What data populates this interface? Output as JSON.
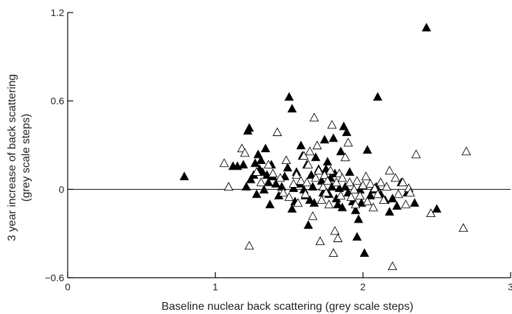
{
  "chart_data": {
    "type": "scatter",
    "title": "",
    "xlabel": "Baseline nuclear back scattering (grey scale steps)",
    "ylabel_line1": "3 year increase of back scattering",
    "ylabel_line2": "(grey scale steps)",
    "xlim": [
      0,
      3
    ],
    "ylim": [
      -0.6,
      1.2
    ],
    "xticks": [
      {
        "value": 0,
        "label": "0"
      },
      {
        "value": 1,
        "label": "1"
      },
      {
        "value": 2,
        "label": "2"
      },
      {
        "value": 3,
        "label": "3"
      }
    ],
    "yticks": [
      {
        "value": -0.6,
        "label": "−0.6"
      },
      {
        "value": 0,
        "label": "0"
      },
      {
        "value": 0.6,
        "label": "0.6"
      },
      {
        "value": 1.2,
        "label": "1.2"
      }
    ],
    "reference_line_y": 0,
    "grid": false,
    "legend": "none",
    "colors": {
      "filled": "#000000",
      "open_stroke": "#000000",
      "axis": "#000000"
    },
    "series": [
      {
        "marker": "filled-triangle",
        "points": [
          [
            0.79,
            0.09
          ],
          [
            1.12,
            0.16
          ],
          [
            1.15,
            0.16
          ],
          [
            1.19,
            0.17
          ],
          [
            1.21,
            0.02
          ],
          [
            1.22,
            0.4
          ],
          [
            1.23,
            0.42
          ],
          [
            1.24,
            0.07
          ],
          [
            1.26,
            0.1
          ],
          [
            1.27,
            0.18
          ],
          [
            1.28,
            -0.03
          ],
          [
            1.29,
            0.24
          ],
          [
            1.3,
            0.14
          ],
          [
            1.31,
            0.2
          ],
          [
            1.32,
            0.12
          ],
          [
            1.33,
            0.0
          ],
          [
            1.34,
            0.28
          ],
          [
            1.35,
            0.1
          ],
          [
            1.36,
            0.05
          ],
          [
            1.37,
            -0.1
          ],
          [
            1.38,
            0.17
          ],
          [
            1.39,
            0.09
          ],
          [
            1.41,
            0.04
          ],
          [
            1.43,
            -0.04
          ],
          [
            1.45,
            0.02
          ],
          [
            1.47,
            0.09
          ],
          [
            1.49,
            0.15
          ],
          [
            1.5,
            0.63
          ],
          [
            1.52,
            0.55
          ],
          [
            1.52,
            -0.13
          ],
          [
            1.53,
            0.01
          ],
          [
            1.54,
            -0.08
          ],
          [
            1.55,
            0.12
          ],
          [
            1.57,
            0.04
          ],
          [
            1.58,
            0.3
          ],
          [
            1.59,
            0.23
          ],
          [
            1.6,
            0.0
          ],
          [
            1.61,
            -0.04
          ],
          [
            1.62,
            0.17
          ],
          [
            1.63,
            -0.24
          ],
          [
            1.64,
            -0.07
          ],
          [
            1.65,
            0.1
          ],
          [
            1.66,
            0.02
          ],
          [
            1.67,
            -0.09
          ],
          [
            1.68,
            0.22
          ],
          [
            1.7,
            0.14
          ],
          [
            1.72,
            0.06
          ],
          [
            1.73,
            -0.02
          ],
          [
            1.74,
            0.34
          ],
          [
            1.75,
            0.14
          ],
          [
            1.76,
            0.19
          ],
          [
            1.77,
            -0.03
          ],
          [
            1.78,
            0.08
          ],
          [
            1.79,
            0.02
          ],
          [
            1.8,
            0.35
          ],
          [
            1.81,
            0.11
          ],
          [
            1.82,
            -0.06
          ],
          [
            1.83,
            -0.1
          ],
          [
            1.84,
            0.01
          ],
          [
            1.85,
            0.26
          ],
          [
            1.86,
            -0.12
          ],
          [
            1.87,
            0.43
          ],
          [
            1.88,
            0.02
          ],
          [
            1.89,
            0.39
          ],
          [
            1.9,
            -0.02
          ],
          [
            1.91,
            0.12
          ],
          [
            1.93,
            -0.08
          ],
          [
            1.95,
            -0.14
          ],
          [
            1.96,
            -0.32
          ],
          [
            1.97,
            -0.2
          ],
          [
            1.98,
            0.0
          ],
          [
            1.99,
            -0.09
          ],
          [
            2.01,
            -0.43
          ],
          [
            2.03,
            0.27
          ],
          [
            2.05,
            -0.04
          ],
          [
            2.07,
            0.0
          ],
          [
            2.09,
            0.02
          ],
          [
            2.1,
            0.63
          ],
          [
            2.12,
            -0.03
          ],
          [
            2.15,
            -0.07
          ],
          [
            2.18,
            -0.15
          ],
          [
            2.2,
            -0.06
          ],
          [
            2.23,
            -0.11
          ],
          [
            2.26,
            0.05
          ],
          [
            2.3,
            -0.02
          ],
          [
            2.35,
            -0.09
          ],
          [
            2.43,
            1.1
          ],
          [
            2.5,
            -0.13
          ]
        ]
      },
      {
        "marker": "open-triangle",
        "points": [
          [
            1.06,
            0.18
          ],
          [
            1.09,
            0.02
          ],
          [
            1.18,
            0.28
          ],
          [
            1.2,
            0.25
          ],
          [
            1.23,
            -0.38
          ],
          [
            1.28,
            0.12
          ],
          [
            1.31,
            0.05
          ],
          [
            1.36,
            0.17
          ],
          [
            1.39,
            0.11
          ],
          [
            1.42,
            0.39
          ],
          [
            1.44,
            0.08
          ],
          [
            1.46,
            -0.02
          ],
          [
            1.48,
            0.2
          ],
          [
            1.5,
            -0.05
          ],
          [
            1.53,
            0.04
          ],
          [
            1.55,
            0.1
          ],
          [
            1.56,
            -0.09
          ],
          [
            1.58,
            0.06
          ],
          [
            1.6,
            0.23
          ],
          [
            1.61,
            -0.03
          ],
          [
            1.62,
            0.05
          ],
          [
            1.63,
            0.17
          ],
          [
            1.64,
            0.26
          ],
          [
            1.66,
            -0.18
          ],
          [
            1.67,
            0.49
          ],
          [
            1.68,
            0.08
          ],
          [
            1.69,
            0.3
          ],
          [
            1.7,
            0.13
          ],
          [
            1.71,
            -0.35
          ],
          [
            1.72,
            -0.07
          ],
          [
            1.73,
            0.02
          ],
          [
            1.74,
            0.1
          ],
          [
            1.75,
            -0.02
          ],
          [
            1.76,
            0.06
          ],
          [
            1.77,
            -0.1
          ],
          [
            1.78,
            0.13
          ],
          [
            1.79,
            0.44
          ],
          [
            1.8,
            -0.43
          ],
          [
            1.81,
            -0.28
          ],
          [
            1.82,
            0.05
          ],
          [
            1.83,
            -0.33
          ],
          [
            1.84,
            0.11
          ],
          [
            1.85,
            -0.04
          ],
          [
            1.86,
            0.08
          ],
          [
            1.88,
            0.22
          ],
          [
            1.9,
            0.32
          ],
          [
            1.91,
            0.05
          ],
          [
            1.92,
            -0.05
          ],
          [
            1.94,
            0.0
          ],
          [
            1.95,
            -0.1
          ],
          [
            1.96,
            0.06
          ],
          [
            1.98,
            -0.04
          ],
          [
            2.0,
            0.03
          ],
          [
            2.02,
            0.09
          ],
          [
            2.03,
            -0.08
          ],
          [
            2.05,
            0.04
          ],
          [
            2.07,
            -0.12
          ],
          [
            2.08,
            0.01
          ],
          [
            2.1,
            -0.03
          ],
          [
            2.12,
            0.05
          ],
          [
            2.14,
            -0.07
          ],
          [
            2.16,
            0.02
          ],
          [
            2.18,
            0.13
          ],
          [
            2.2,
            -0.52
          ],
          [
            2.22,
            0.08
          ],
          [
            2.24,
            -0.03
          ],
          [
            2.27,
            0.05
          ],
          [
            2.29,
            -0.1
          ],
          [
            2.31,
            0.01
          ],
          [
            2.36,
            0.24
          ],
          [
            2.46,
            -0.16
          ],
          [
            2.68,
            -0.26
          ],
          [
            2.7,
            0.26
          ],
          [
            2.32,
            -0.02
          ]
        ]
      }
    ]
  }
}
